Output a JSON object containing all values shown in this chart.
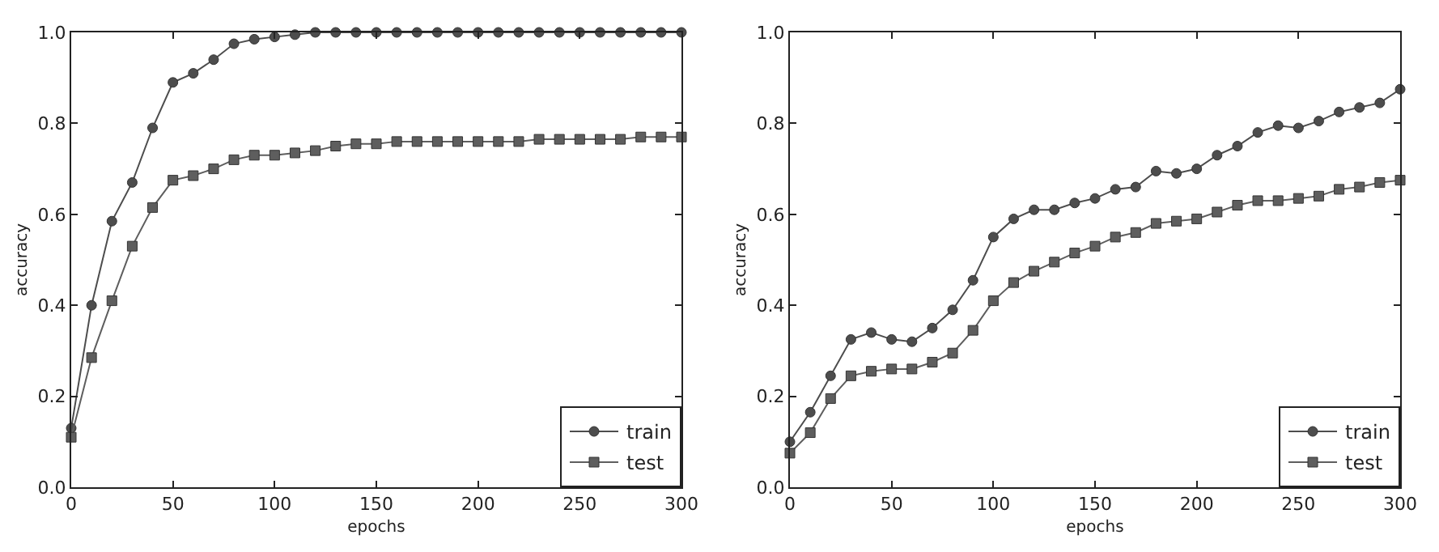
{
  "chart_data": [
    {
      "type": "line",
      "xlabel": "epochs",
      "ylabel": "accuracy",
      "x": [
        0,
        10,
        20,
        30,
        40,
        50,
        60,
        70,
        80,
        90,
        100,
        110,
        120,
        130,
        140,
        150,
        160,
        170,
        180,
        190,
        200,
        210,
        220,
        230,
        240,
        250,
        260,
        270,
        280,
        290,
        300
      ],
      "series": [
        {
          "name": "train",
          "color": "#4d4d4d",
          "marker": "circle",
          "values": [
            0.13,
            0.4,
            0.585,
            0.67,
            0.79,
            0.89,
            0.91,
            0.94,
            0.975,
            0.985,
            0.99,
            0.995,
            1.0,
            1.0,
            1.0,
            1.0,
            1.0,
            1.0,
            1.0,
            1.0,
            1.0,
            1.0,
            1.0,
            1.0,
            1.0,
            1.0,
            1.0,
            1.0,
            1.0,
            1.0,
            1.0
          ]
        },
        {
          "name": "test",
          "color": "#5e5e5e",
          "marker": "square",
          "values": [
            0.11,
            0.285,
            0.41,
            0.53,
            0.615,
            0.675,
            0.685,
            0.7,
            0.72,
            0.73,
            0.73,
            0.735,
            0.74,
            0.75,
            0.755,
            0.755,
            0.76,
            0.76,
            0.76,
            0.76,
            0.76,
            0.76,
            0.76,
            0.765,
            0.765,
            0.765,
            0.765,
            0.765,
            0.77,
            0.77,
            0.77
          ]
        }
      ],
      "xlim": [
        0,
        300
      ],
      "xticks": [
        0,
        50,
        100,
        150,
        200,
        250,
        300
      ],
      "ylim": [
        0,
        1
      ],
      "yticks": [
        {
          "value": 0,
          "label": "0.0"
        },
        {
          "value": 0.2,
          "label": "0.2"
        },
        {
          "value": 0.4,
          "label": "0.4"
        },
        {
          "value": 0.6,
          "label": "0.6"
        },
        {
          "value": 0.8,
          "label": "0.8"
        },
        {
          "value": 1,
          "label": "1.0"
        }
      ],
      "grid": false,
      "legend": "bottom right",
      "line_style": "solid"
    },
    {
      "type": "line",
      "xlabel": "epochs",
      "ylabel": "accuracy",
      "x": [
        0,
        10,
        20,
        30,
        40,
        50,
        60,
        70,
        80,
        90,
        100,
        110,
        120,
        130,
        140,
        150,
        160,
        170,
        180,
        190,
        200,
        210,
        220,
        230,
        240,
        250,
        260,
        270,
        280,
        290,
        300
      ],
      "series": [
        {
          "name": "train",
          "color": "#4d4d4d",
          "marker": "circle",
          "values": [
            0.1,
            0.165,
            0.245,
            0.325,
            0.34,
            0.325,
            0.32,
            0.35,
            0.39,
            0.455,
            0.55,
            0.59,
            0.61,
            0.61,
            0.625,
            0.635,
            0.655,
            0.66,
            0.695,
            0.69,
            0.7,
            0.73,
            0.75,
            0.78,
            0.795,
            0.79,
            0.805,
            0.825,
            0.835,
            0.845,
            0.875
          ]
        },
        {
          "name": "test",
          "color": "#5e5e5e",
          "marker": "square",
          "values": [
            0.075,
            0.12,
            0.195,
            0.245,
            0.255,
            0.26,
            0.26,
            0.275,
            0.295,
            0.345,
            0.41,
            0.45,
            0.475,
            0.495,
            0.515,
            0.53,
            0.55,
            0.56,
            0.58,
            0.585,
            0.59,
            0.605,
            0.62,
            0.63,
            0.63,
            0.635,
            0.64,
            0.655,
            0.66,
            0.67,
            0.675
          ]
        }
      ],
      "xlim": [
        0,
        300
      ],
      "xticks": [
        0,
        50,
        100,
        150,
        200,
        250,
        300
      ],
      "ylim": [
        0,
        1
      ],
      "yticks": [
        {
          "value": 0,
          "label": "0.0"
        },
        {
          "value": 0.2,
          "label": "0.2"
        },
        {
          "value": 0.4,
          "label": "0.4"
        },
        {
          "value": 0.6,
          "label": "0.6"
        },
        {
          "value": 0.8,
          "label": "0.8"
        },
        {
          "value": 1,
          "label": "1.0"
        }
      ],
      "grid": false,
      "legend": "bottom right",
      "line_style": "solid"
    }
  ]
}
